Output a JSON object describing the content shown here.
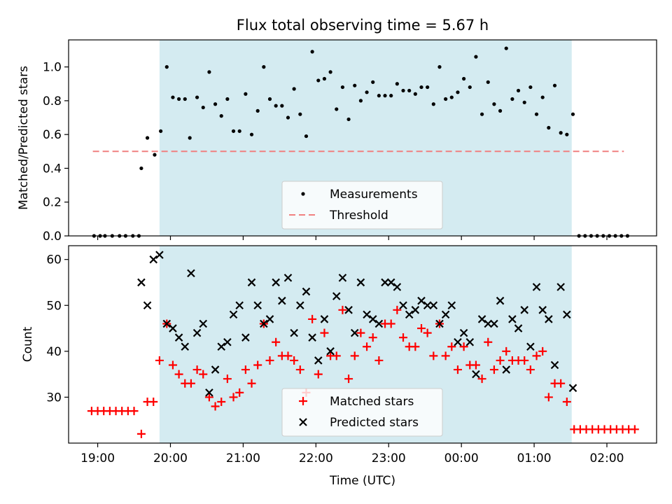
{
  "title": "Flux total observing time = 5.67 h",
  "xlabel": "Time (UTC)",
  "x_tick_labels": [
    "19:00",
    "20:00",
    "21:00",
    "22:00",
    "23:00",
    "00:00",
    "01:00",
    "02:00"
  ],
  "colors": {
    "observing_span": "#d4ebf1",
    "measurements": "#000000",
    "threshold": "#f08080",
    "matched": "#ff0000",
    "predicted": "#000000"
  },
  "chart_data": [
    {
      "type": "scatter",
      "ylabel": "Matched/Predicted stars",
      "ylim": [
        0,
        1.16
      ],
      "xlim": [
        "18:36",
        "02:41"
      ],
      "y_tick_labels": [
        "0.0",
        "0.2",
        "0.4",
        "0.6",
        "0.8",
        "1.0"
      ],
      "observing_span": [
        "19:51",
        "01:31"
      ],
      "threshold": 0.5,
      "legend": [
        "Measurements",
        "Threshold"
      ],
      "legend_position": "lower-center",
      "series": [
        {
          "name": "Measurements",
          "points": [
            [
              "18:57",
              0
            ],
            [
              "19:02",
              0
            ],
            [
              "19:06",
              0
            ],
            [
              "19:12",
              0
            ],
            [
              "19:18",
              0
            ],
            [
              "19:23",
              0
            ],
            [
              "19:29",
              0
            ],
            [
              "19:34",
              0
            ],
            [
              "19:36",
              0.4
            ],
            [
              "19:41",
              0.58
            ],
            [
              "19:47",
              0.48
            ],
            [
              "19:52",
              0.62
            ],
            [
              "19:57",
              1.0
            ],
            [
              "20:02",
              0.82
            ],
            [
              "20:07",
              0.81
            ],
            [
              "20:12",
              0.81
            ],
            [
              "20:16",
              0.58
            ],
            [
              "20:22",
              0.82
            ],
            [
              "20:27",
              0.76
            ],
            [
              "20:32",
              0.97
            ],
            [
              "20:37",
              0.78
            ],
            [
              "20:42",
              0.71
            ],
            [
              "20:47",
              0.81
            ],
            [
              "20:52",
              0.62
            ],
            [
              "20:57",
              0.62
            ],
            [
              "21:02",
              0.84
            ],
            [
              "21:07",
              0.6
            ],
            [
              "21:12",
              0.74
            ],
            [
              "21:17",
              1.0
            ],
            [
              "21:22",
              0.81
            ],
            [
              "21:27",
              0.77
            ],
            [
              "21:32",
              0.77
            ],
            [
              "21:37",
              0.7
            ],
            [
              "21:42",
              0.87
            ],
            [
              "21:47",
              0.72
            ],
            [
              "21:52",
              0.59
            ],
            [
              "21:57",
              1.09
            ],
            [
              "22:02",
              0.92
            ],
            [
              "22:07",
              0.93
            ],
            [
              "22:12",
              0.97
            ],
            [
              "22:17",
              0.75
            ],
            [
              "22:22",
              0.88
            ],
            [
              "22:27",
              0.69
            ],
            [
              "22:32",
              0.89
            ],
            [
              "22:37",
              0.8
            ],
            [
              "22:42",
              0.85
            ],
            [
              "22:47",
              0.91
            ],
            [
              "22:52",
              0.83
            ],
            [
              "22:57",
              0.83
            ],
            [
              "23:02",
              0.83
            ],
            [
              "23:07",
              0.9
            ],
            [
              "23:12",
              0.86
            ],
            [
              "23:17",
              0.86
            ],
            [
              "23:22",
              0.84
            ],
            [
              "23:27",
              0.88
            ],
            [
              "23:32",
              0.88
            ],
            [
              "23:37",
              0.78
            ],
            [
              "23:42",
              1.0
            ],
            [
              "23:47",
              0.81
            ],
            [
              "23:52",
              0.82
            ],
            [
              "23:57",
              0.85
            ],
            [
              "00:02",
              0.93
            ],
            [
              "00:07",
              0.88
            ],
            [
              "00:12",
              1.06
            ],
            [
              "00:17",
              0.72
            ],
            [
              "00:22",
              0.91
            ],
            [
              "00:27",
              0.78
            ],
            [
              "00:32",
              0.74
            ],
            [
              "00:37",
              1.11
            ],
            [
              "00:42",
              0.81
            ],
            [
              "00:47",
              0.86
            ],
            [
              "00:52",
              0.79
            ],
            [
              "00:57",
              0.88
            ],
            [
              "01:02",
              0.72
            ],
            [
              "01:07",
              0.82
            ],
            [
              "01:12",
              0.64
            ],
            [
              "01:17",
              0.89
            ],
            [
              "01:22",
              0.61
            ],
            [
              "01:27",
              0.6
            ],
            [
              "01:32",
              0.72
            ],
            [
              "01:37",
              0
            ],
            [
              "01:42",
              0
            ],
            [
              "01:47",
              0
            ],
            [
              "01:52",
              0
            ],
            [
              "01:57",
              0
            ],
            [
              "02:02",
              0
            ],
            [
              "02:07",
              0
            ],
            [
              "02:12",
              0
            ],
            [
              "02:17",
              0
            ]
          ]
        }
      ]
    },
    {
      "type": "scatter",
      "ylabel": "Count",
      "ylim": [
        20,
        63
      ],
      "xlim": [
        "18:36",
        "02:41"
      ],
      "y_tick_labels": [
        "30",
        "40",
        "50",
        "60"
      ],
      "observing_span": [
        "19:51",
        "01:31"
      ],
      "legend": [
        "Matched stars",
        "Predicted stars"
      ],
      "legend_position": "lower-center",
      "series": [
        {
          "name": "Matched stars",
          "points": [
            [
              "18:55",
              27
            ],
            [
              "19:00",
              27
            ],
            [
              "19:05",
              27
            ],
            [
              "19:10",
              27
            ],
            [
              "19:15",
              27
            ],
            [
              "19:20",
              27
            ],
            [
              "19:25",
              27
            ],
            [
              "19:30",
              27
            ],
            [
              "19:36",
              22
            ],
            [
              "19:41",
              29
            ],
            [
              "19:46",
              29
            ],
            [
              "19:51",
              38
            ],
            [
              "19:57",
              46
            ],
            [
              "20:02",
              37
            ],
            [
              "20:07",
              35
            ],
            [
              "20:12",
              33
            ],
            [
              "20:17",
              33
            ],
            [
              "20:22",
              36
            ],
            [
              "20:27",
              35
            ],
            [
              "20:32",
              30
            ],
            [
              "20:37",
              28
            ],
            [
              "20:42",
              29
            ],
            [
              "20:47",
              34
            ],
            [
              "20:52",
              30
            ],
            [
              "20:57",
              31
            ],
            [
              "21:02",
              36
            ],
            [
              "21:07",
              33
            ],
            [
              "21:12",
              37
            ],
            [
              "21:17",
              46
            ],
            [
              "21:22",
              38
            ],
            [
              "21:27",
              42
            ],
            [
              "21:32",
              39
            ],
            [
              "21:37",
              39
            ],
            [
              "21:42",
              38
            ],
            [
              "21:47",
              36
            ],
            [
              "21:52",
              31
            ],
            [
              "21:57",
              47
            ],
            [
              "22:02",
              35
            ],
            [
              "22:07",
              44
            ],
            [
              "22:12",
              39
            ],
            [
              "22:17",
              39
            ],
            [
              "22:22",
              49
            ],
            [
              "22:27",
              34
            ],
            [
              "22:32",
              39
            ],
            [
              "22:37",
              44
            ],
            [
              "22:42",
              41
            ],
            [
              "22:47",
              43
            ],
            [
              "22:52",
              38
            ],
            [
              "22:57",
              46
            ],
            [
              "23:02",
              46
            ],
            [
              "23:07",
              49
            ],
            [
              "23:12",
              43
            ],
            [
              "23:17",
              41
            ],
            [
              "23:22",
              41
            ],
            [
              "23:27",
              45
            ],
            [
              "23:32",
              44
            ],
            [
              "23:37",
              39
            ],
            [
              "23:42",
              46
            ],
            [
              "23:47",
              39
            ],
            [
              "23:52",
              41
            ],
            [
              "23:57",
              36
            ],
            [
              "00:02",
              41
            ],
            [
              "00:07",
              37
            ],
            [
              "00:12",
              37
            ],
            [
              "00:17",
              34
            ],
            [
              "00:22",
              42
            ],
            [
              "00:27",
              36
            ],
            [
              "00:32",
              38
            ],
            [
              "00:37",
              40
            ],
            [
              "00:42",
              38
            ],
            [
              "00:47",
              38
            ],
            [
              "00:52",
              38
            ],
            [
              "00:57",
              36
            ],
            [
              "01:02",
              39
            ],
            [
              "01:07",
              40
            ],
            [
              "01:12",
              30
            ],
            [
              "01:17",
              33
            ],
            [
              "01:22",
              33
            ],
            [
              "01:27",
              29
            ],
            [
              "01:33",
              23
            ],
            [
              "01:38",
              23
            ],
            [
              "01:43",
              23
            ],
            [
              "01:48",
              23
            ],
            [
              "01:53",
              23
            ],
            [
              "01:58",
              23
            ],
            [
              "02:03",
              23
            ],
            [
              "02:08",
              23
            ],
            [
              "02:13",
              23
            ],
            [
              "02:18",
              23
            ],
            [
              "02:23",
              23
            ]
          ]
        },
        {
          "name": "Predicted stars",
          "points": [
            [
              "19:36",
              55
            ],
            [
              "19:41",
              50
            ],
            [
              "19:46",
              60
            ],
            [
              "19:51",
              61
            ],
            [
              "19:57",
              46
            ],
            [
              "20:02",
              45
            ],
            [
              "20:07",
              43
            ],
            [
              "20:12",
              41
            ],
            [
              "20:17",
              57
            ],
            [
              "20:22",
              44
            ],
            [
              "20:27",
              46
            ],
            [
              "20:32",
              31
            ],
            [
              "20:37",
              36
            ],
            [
              "20:42",
              41
            ],
            [
              "20:47",
              42
            ],
            [
              "20:52",
              48
            ],
            [
              "20:57",
              50
            ],
            [
              "21:02",
              43
            ],
            [
              "21:07",
              55
            ],
            [
              "21:12",
              50
            ],
            [
              "21:17",
              46
            ],
            [
              "21:22",
              47
            ],
            [
              "21:27",
              55
            ],
            [
              "21:32",
              51
            ],
            [
              "21:37",
              56
            ],
            [
              "21:42",
              44
            ],
            [
              "21:47",
              50
            ],
            [
              "21:52",
              53
            ],
            [
              "21:57",
              43
            ],
            [
              "22:02",
              38
            ],
            [
              "22:07",
              47
            ],
            [
              "22:12",
              40
            ],
            [
              "22:17",
              52
            ],
            [
              "22:22",
              56
            ],
            [
              "22:27",
              49
            ],
            [
              "22:32",
              44
            ],
            [
              "22:37",
              55
            ],
            [
              "22:42",
              48
            ],
            [
              "22:47",
              47
            ],
            [
              "22:52",
              46
            ],
            [
              "22:57",
              55
            ],
            [
              "23:02",
              55
            ],
            [
              "23:07",
              54
            ],
            [
              "23:12",
              50
            ],
            [
              "23:17",
              48
            ],
            [
              "23:22",
              49
            ],
            [
              "23:27",
              51
            ],
            [
              "23:32",
              50
            ],
            [
              "23:37",
              50
            ],
            [
              "23:42",
              46
            ],
            [
              "23:47",
              48
            ],
            [
              "23:52",
              50
            ],
            [
              "23:57",
              42
            ],
            [
              "00:02",
              44
            ],
            [
              "00:07",
              42
            ],
            [
              "00:12",
              35
            ],
            [
              "00:17",
              47
            ],
            [
              "00:22",
              46
            ],
            [
              "00:27",
              46
            ],
            [
              "00:32",
              51
            ],
            [
              "00:37",
              36
            ],
            [
              "00:42",
              47
            ],
            [
              "00:47",
              45
            ],
            [
              "00:52",
              49
            ],
            [
              "00:57",
              41
            ],
            [
              "01:02",
              54
            ],
            [
              "01:07",
              49
            ],
            [
              "01:12",
              47
            ],
            [
              "01:17",
              37
            ],
            [
              "01:22",
              54
            ],
            [
              "01:27",
              48
            ],
            [
              "01:32",
              32
            ]
          ]
        }
      ]
    }
  ]
}
